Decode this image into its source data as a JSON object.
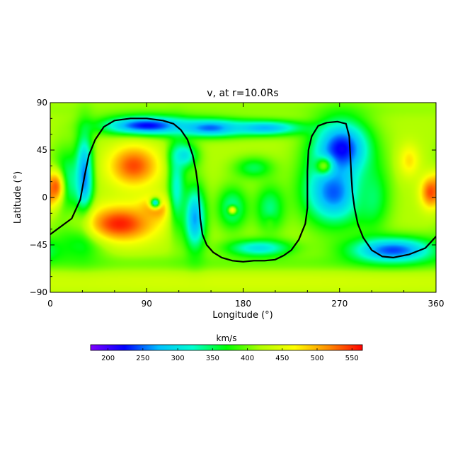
{
  "chart_data": {
    "type": "heatmap",
    "title": "v, at r=10.0Rs",
    "xlabel": "Longitude (°)",
    "ylabel": "Latitude (°)",
    "xlim": [
      0,
      360
    ],
    "ylim": [
      -90,
      90
    ],
    "x_ticks": [
      0,
      90,
      180,
      270,
      360
    ],
    "y_ticks": [
      90,
      45,
      0,
      -45,
      -90
    ],
    "y_tick_labels": [
      "90",
      "45",
      "0",
      "−45",
      "−90"
    ],
    "grid": false,
    "colorbar": {
      "label": "km/s",
      "range": [
        175,
        565
      ],
      "ticks": [
        200,
        250,
        300,
        350,
        400,
        450,
        500,
        550
      ],
      "colormap": "rainbow",
      "stops": [
        "#7f00ff",
        "#0000ff",
        "#00bfff",
        "#00ffd0",
        "#00ff00",
        "#b0ff00",
        "#ffff00",
        "#ff8c00",
        "#ff0000"
      ]
    },
    "background_value": 420,
    "features": [
      {
        "lon": 180,
        "lat": 84,
        "value": 410,
        "r_lon": 360,
        "r_lat": 8
      },
      {
        "lon": 180,
        "lat": -80,
        "value": 440,
        "r_lon": 360,
        "r_lat": 12
      },
      {
        "lon": 180,
        "lat": -62,
        "value": 400,
        "r_lon": 360,
        "r_lat": 8
      },
      {
        "lon": 90,
        "lat": 68,
        "value": 215,
        "r_lon": 40,
        "r_lat": 9
      },
      {
        "lon": 150,
        "lat": 66,
        "value": 245,
        "r_lon": 30,
        "r_lat": 8
      },
      {
        "lon": 200,
        "lat": 66,
        "value": 270,
        "r_lon": 35,
        "r_lat": 7
      },
      {
        "lon": 272,
        "lat": 45,
        "value": 215,
        "r_lon": 26,
        "r_lat": 28
      },
      {
        "lon": 265,
        "lat": 5,
        "value": 245,
        "r_lon": 28,
        "r_lat": 30
      },
      {
        "lon": 255,
        "lat": 30,
        "value": 405,
        "r_lon": 8,
        "r_lat": 8
      },
      {
        "lon": 300,
        "lat": 0,
        "value": 345,
        "r_lon": 16,
        "r_lat": 30
      },
      {
        "lon": 320,
        "lat": -50,
        "value": 240,
        "r_lon": 40,
        "r_lat": 12
      },
      {
        "lon": 30,
        "lat": -40,
        "value": 350,
        "r_lon": 25,
        "r_lat": 20
      },
      {
        "lon": 15,
        "lat": 15,
        "value": 330,
        "r_lon": 14,
        "r_lat": 30
      },
      {
        "lon": 32,
        "lat": 20,
        "value": 250,
        "r_lon": 8,
        "r_lat": 40
      },
      {
        "lon": 5,
        "lat": 10,
        "value": 530,
        "r_lon": 8,
        "r_lat": 16
      },
      {
        "lon": 355,
        "lat": 5,
        "value": 540,
        "r_lon": 10,
        "r_lat": 16
      },
      {
        "lon": 335,
        "lat": 35,
        "value": 480,
        "r_lon": 10,
        "r_lat": 16
      },
      {
        "lon": 78,
        "lat": 30,
        "value": 540,
        "r_lon": 24,
        "r_lat": 20
      },
      {
        "lon": 65,
        "lat": -25,
        "value": 555,
        "r_lon": 34,
        "r_lat": 18
      },
      {
        "lon": 100,
        "lat": -10,
        "value": 520,
        "r_lon": 16,
        "r_lat": 12
      },
      {
        "lon": 98,
        "lat": -5,
        "value": 300,
        "r_lon": 5,
        "r_lat": 5
      },
      {
        "lon": 118,
        "lat": 10,
        "value": 320,
        "r_lon": 8,
        "r_lat": 40
      },
      {
        "lon": 135,
        "lat": -20,
        "value": 265,
        "r_lon": 10,
        "r_lat": 30
      },
      {
        "lon": 125,
        "lat": 40,
        "value": 300,
        "r_lon": 12,
        "r_lat": 12
      },
      {
        "lon": 170,
        "lat": -10,
        "value": 330,
        "r_lon": 14,
        "r_lat": 20
      },
      {
        "lon": 170,
        "lat": -12,
        "value": 470,
        "r_lon": 4,
        "r_lat": 4
      },
      {
        "lon": 205,
        "lat": -18,
        "value": 510,
        "r_lon": 4,
        "r_lat": 8
      },
      {
        "lon": 205,
        "lat": -10,
        "value": 340,
        "r_lon": 14,
        "r_lat": 22
      },
      {
        "lon": 190,
        "lat": 28,
        "value": 350,
        "r_lon": 18,
        "r_lat": 10
      },
      {
        "lon": 195,
        "lat": -48,
        "value": 300,
        "r_lon": 30,
        "r_lat": 8
      }
    ],
    "series": [
      {
        "lon": [
          0,
          20,
          28,
          32,
          36,
          42,
          50,
          60,
          75,
          90,
          105,
          115,
          122,
          128,
          133,
          136,
          138,
          139,
          140,
          142,
          146,
          152,
          160,
          170,
          180,
          190,
          200,
          210,
          218,
          225,
          232,
          238,
          240,
          240,
          240,
          241,
          244,
          250,
          258,
          268,
          276,
          279,
          280,
          281,
          282,
          284,
          287,
          292,
          300,
          310,
          320,
          335,
          350,
          360
        ],
        "lat": [
          -35,
          -20,
          -2,
          20,
          40,
          55,
          67,
          73,
          75,
          75,
          73,
          70,
          64,
          55,
          40,
          25,
          10,
          -5,
          -20,
          -35,
          -45,
          -52,
          -57,
          -60,
          -61,
          -60,
          -60,
          -59,
          -55,
          -50,
          -40,
          -25,
          -10,
          5,
          25,
          45,
          58,
          68,
          71,
          72,
          70,
          58,
          40,
          20,
          5,
          -10,
          -25,
          -38,
          -50,
          -56,
          -57,
          -54,
          -48,
          -37
        ]
      }
    ]
  }
}
